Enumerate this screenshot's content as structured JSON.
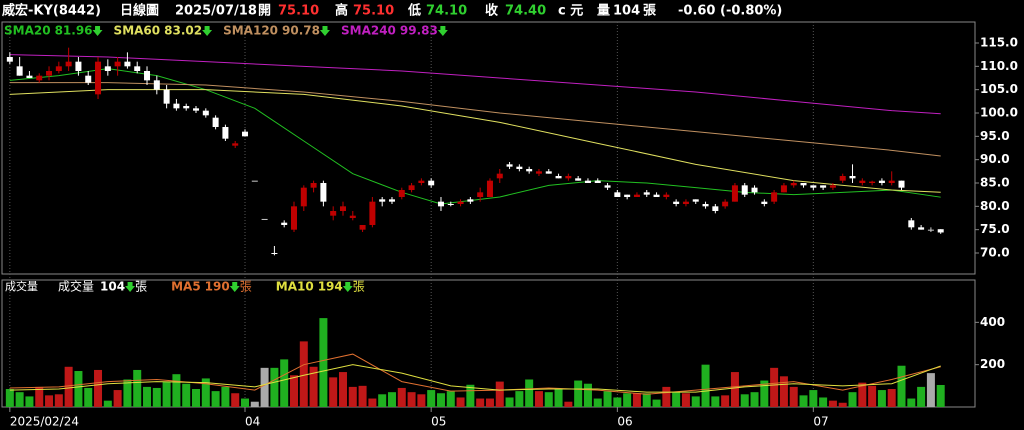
{
  "header": {
    "name": "威宏-KY(8442)",
    "period": "日線圖",
    "date": "2025/07/18",
    "open_label": "開",
    "open": "75.10",
    "high_label": "高",
    "high": "75.10",
    "low_label": "低",
    "low": "74.10",
    "close_label": "收",
    "close": "74.40",
    "unit": "c 元",
    "volume_label": "量",
    "volume": "104",
    "volume_unit": "張",
    "change": "-0.60 (-0.80%)"
  },
  "chart_data": [
    {
      "type": "candlestick",
      "candles": [
        [
          112,
          113,
          110.5,
          111
        ],
        [
          110,
          112,
          108,
          108
        ],
        [
          108,
          109,
          107.5,
          107.5
        ],
        [
          107,
          108.5,
          106.5,
          108
        ],
        [
          108,
          110,
          107,
          109
        ],
        [
          109,
          111,
          108.5,
          110
        ],
        [
          110,
          114,
          109,
          111
        ],
        [
          111,
          112,
          108,
          109
        ],
        [
          108,
          109,
          106,
          106.5
        ],
        [
          104,
          112,
          103,
          111
        ],
        [
          110,
          111.5,
          108,
          109
        ],
        [
          110,
          112,
          108,
          111
        ],
        [
          111,
          113,
          109.5,
          110
        ],
        [
          110,
          111,
          108.5,
          109
        ],
        [
          109,
          110,
          106,
          107
        ],
        [
          107,
          108,
          104,
          105
        ],
        [
          105,
          106,
          101,
          102
        ],
        [
          102,
          103,
          100.5,
          101
        ],
        [
          101.5,
          102,
          100.5,
          101
        ],
        [
          101,
          101.5,
          100,
          100.5
        ],
        [
          100.5,
          101,
          99,
          99.5
        ],
        [
          99,
          99.5,
          96.5,
          97
        ],
        [
          97,
          97.5,
          94,
          94.5
        ],
        [
          93,
          94,
          92.5,
          93.5
        ],
        [
          96,
          96.5,
          95,
          95
        ],
        [
          85.5,
          85.5,
          85.5,
          85.5
        ],
        [
          77.3,
          77.3,
          77.3,
          77.3
        ],
        [
          70,
          71.5,
          69.5,
          69.8
        ],
        [
          76.5,
          77,
          75.5,
          76
        ],
        [
          75,
          81,
          74.5,
          80
        ],
        [
          80,
          84.5,
          79,
          84
        ],
        [
          84,
          85.5,
          83,
          85
        ],
        [
          85,
          85.5,
          80,
          81
        ],
        [
          78,
          80,
          77,
          79
        ],
        [
          79,
          81,
          78,
          80
        ],
        [
          77.5,
          79,
          77,
          78
        ],
        [
          75,
          76,
          74.5,
          76
        ],
        [
          76,
          82,
          75.5,
          81
        ],
        [
          81.5,
          82,
          80,
          81
        ],
        [
          81.5,
          82,
          80.5,
          81
        ],
        [
          82,
          84,
          81.5,
          83.5
        ],
        [
          83.5,
          85,
          83,
          84.5
        ],
        [
          85,
          86,
          84.5,
          85.5
        ],
        [
          85.5,
          86,
          84,
          84.5
        ],
        [
          81,
          82,
          79,
          80
        ],
        [
          80.5,
          81,
          80,
          80.3
        ],
        [
          80.5,
          81.5,
          80,
          81
        ],
        [
          81.5,
          82,
          80.5,
          81
        ],
        [
          82,
          84,
          81,
          83
        ],
        [
          82,
          86,
          82,
          85.5
        ],
        [
          86,
          88,
          85,
          87
        ],
        [
          89,
          89.5,
          88,
          88.5
        ],
        [
          88.5,
          89,
          87.5,
          88
        ],
        [
          88,
          88.5,
          87,
          87.5
        ],
        [
          87,
          88,
          86.5,
          87.5
        ],
        [
          87.5,
          88,
          87,
          87
        ],
        [
          86.5,
          87,
          86,
          86
        ],
        [
          86,
          87,
          85.5,
          86.5
        ],
        [
          86,
          86.5,
          85.5,
          85.5
        ],
        [
          85.5,
          86,
          85,
          85
        ],
        [
          85.5,
          86,
          85,
          85
        ],
        [
          84.5,
          85,
          83.5,
          84
        ],
        [
          83,
          83.5,
          82,
          82
        ],
        [
          82.5,
          82.5,
          81.5,
          82
        ],
        [
          82,
          83,
          82,
          82.5
        ],
        [
          83,
          83.5,
          82,
          82.5
        ],
        [
          82.5,
          83,
          82,
          82
        ],
        [
          82,
          83,
          81.5,
          82.5
        ],
        [
          81,
          81.5,
          80,
          80.5
        ],
        [
          80.5,
          81.5,
          80,
          81
        ],
        [
          81.5,
          81.5,
          80.5,
          81
        ],
        [
          80.5,
          81,
          79.5,
          80
        ],
        [
          80,
          80.5,
          78.5,
          79
        ],
        [
          80,
          81.5,
          79.5,
          81
        ],
        [
          81,
          85,
          81,
          84.5
        ],
        [
          84.5,
          85,
          82,
          82.5
        ],
        [
          84,
          84.5,
          82.5,
          83
        ],
        [
          81,
          81.5,
          80,
          80.5
        ],
        [
          81,
          83.5,
          80.5,
          83
        ],
        [
          83,
          85,
          83,
          84.5
        ],
        [
          84.5,
          85.5,
          84,
          85
        ],
        [
          85,
          85,
          84,
          84.5
        ],
        [
          84.5,
          84.5,
          83.5,
          84
        ],
        [
          84.5,
          84.5,
          83.5,
          84
        ],
        [
          84,
          85,
          83.5,
          84.5
        ],
        [
          85.5,
          87,
          85,
          86.5
        ],
        [
          86.5,
          89,
          85,
          86
        ],
        [
          85,
          86,
          84.5,
          85.5
        ],
        [
          85,
          85.5,
          84.5,
          85.3
        ],
        [
          85.5,
          86,
          84.5,
          85
        ],
        [
          85,
          87.5,
          84.5,
          85.5
        ],
        [
          85.5,
          85.5,
          83.5,
          84
        ],
        [
          77,
          77.5,
          75,
          75.5
        ],
        [
          75.5,
          76,
          75,
          75
        ],
        [
          75,
          75.5,
          74.5,
          75
        ],
        [
          75.1,
          75.1,
          74.1,
          74.4
        ]
      ],
      "series": [
        {
          "name": "SMA20",
          "current": 81.96,
          "color": "#22c022",
          "x": [
            0,
            5,
            10,
            15,
            20,
            25,
            30,
            35,
            40,
            44,
            50,
            55,
            60,
            65,
            70,
            75,
            80,
            85,
            90,
            95
          ],
          "values": [
            107,
            108,
            109.5,
            108,
            105,
            101,
            94,
            87,
            83,
            80.5,
            82,
            84.5,
            85.5,
            85,
            84,
            83,
            82.5,
            83,
            83.5,
            81.96
          ]
        },
        {
          "name": "SMA60",
          "current": 83.02,
          "color": "#e0e060",
          "x": [
            0,
            10,
            20,
            30,
            40,
            50,
            60,
            70,
            80,
            90,
            95
          ],
          "values": [
            104,
            105,
            105,
            104,
            101.5,
            98,
            93.5,
            89,
            85.5,
            83.5,
            83.02
          ]
        },
        {
          "name": "SMA120",
          "current": 90.78,
          "color": "#c09060",
          "x": [
            0,
            10,
            20,
            30,
            40,
            50,
            60,
            70,
            80,
            90,
            95
          ],
          "values": [
            106.5,
            106.5,
            106,
            104.5,
            102.5,
            100,
            98,
            96,
            94,
            92,
            90.78
          ]
        },
        {
          "name": "SMA240",
          "current": 99.83,
          "color": "#c020c0",
          "x": [
            0,
            10,
            20,
            30,
            40,
            50,
            60,
            70,
            80,
            90,
            95
          ],
          "values": [
            112.5,
            112,
            111,
            110,
            109,
            107.5,
            106,
            104.5,
            102.5,
            100.5,
            99.83
          ]
        }
      ],
      "xlim": [
        -0.8,
        98.5
      ],
      "ylim": [
        65.5,
        119.5
      ],
      "yticks": [
        {
          "value": 70,
          "label": "70.0"
        },
        {
          "value": 75,
          "label": "75.0"
        },
        {
          "value": 80,
          "label": "80.0"
        },
        {
          "value": 85,
          "label": "85.0"
        },
        {
          "value": 90,
          "label": "90.0"
        },
        {
          "value": 95,
          "label": "95.0"
        },
        {
          "value": 100,
          "label": "100.0"
        },
        {
          "value": 105,
          "label": "105.0"
        },
        {
          "value": 110,
          "label": "110.0"
        },
        {
          "value": 115,
          "label": "115.0"
        }
      ],
      "xticks": [
        {
          "value": 0,
          "label": "2025/02/24"
        },
        {
          "value": 24,
          "label": "04"
        },
        {
          "value": 43,
          "label": "05"
        },
        {
          "value": 62,
          "label": "06"
        },
        {
          "value": 82,
          "label": "07"
        }
      ]
    },
    {
      "type": "bar",
      "title": "成交量",
      "label": "成交量",
      "current": "104",
      "unit": "張",
      "values": [
        85,
        70,
        50,
        95,
        55,
        60,
        190,
        170,
        90,
        175,
        30,
        80,
        130,
        175,
        95,
        90,
        120,
        155,
        110,
        85,
        135,
        75,
        95,
        65,
        40,
        25,
        185,
        185,
        225,
        150,
        310,
        190,
        420,
        140,
        165,
        95,
        100,
        40,
        60,
        70,
        90,
        70,
        60,
        80,
        65,
        75,
        45,
        105,
        40,
        40,
        120,
        45,
        75,
        130,
        75,
        70,
        85,
        25,
        125,
        110,
        40,
        75,
        45,
        65,
        65,
        65,
        35,
        95,
        70,
        65,
        50,
        200,
        50,
        55,
        165,
        60,
        70,
        125,
        185,
        145,
        95,
        55,
        80,
        45,
        30,
        20,
        70,
        115,
        100,
        80,
        85,
        195,
        40,
        95,
        160,
        104
      ],
      "series": [
        {
          "name": "MA5",
          "current": 190,
          "unit": "張",
          "color": "#e07030",
          "x": [
            0,
            5,
            10,
            15,
            20,
            25,
            30,
            35,
            40,
            45,
            50,
            55,
            60,
            65,
            70,
            75,
            80,
            85,
            90,
            95
          ],
          "values": [
            90,
            95,
            120,
            130,
            110,
            80,
            200,
            250,
            120,
            75,
            80,
            90,
            80,
            60,
            80,
            100,
            120,
            80,
            130,
            190
          ]
        },
        {
          "name": "MA10",
          "current": 194,
          "unit": "張",
          "color": "#e0e040",
          "x": [
            0,
            5,
            10,
            15,
            20,
            25,
            30,
            35,
            40,
            45,
            50,
            55,
            60,
            65,
            70,
            75,
            80,
            85,
            90,
            95
          ],
          "values": [
            80,
            85,
            110,
            120,
            115,
            95,
            150,
            200,
            160,
            100,
            80,
            85,
            85,
            70,
            70,
            95,
            110,
            100,
            110,
            194
          ]
        }
      ],
      "xlim": [
        -0.8,
        98.5
      ],
      "ylim": [
        0,
        600
      ],
      "yticks": [
        200,
        400
      ]
    }
  ]
}
